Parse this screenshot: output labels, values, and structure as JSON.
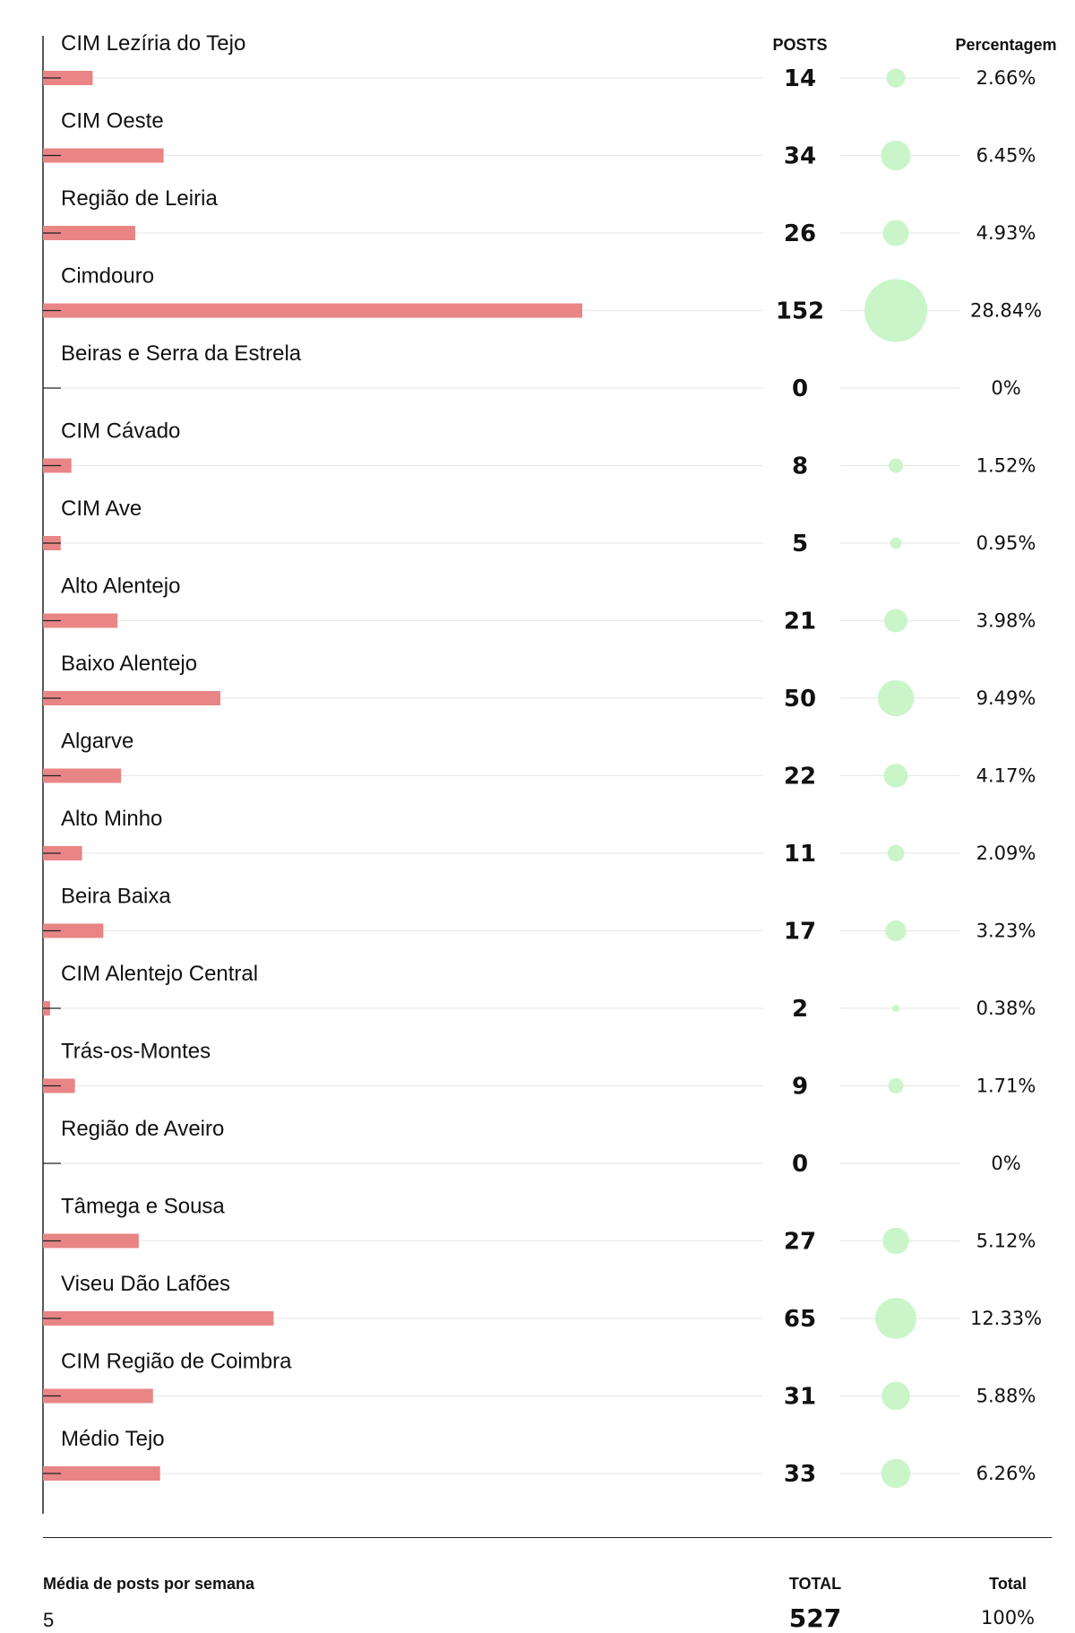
{
  "chart_data": {
    "type": "bar",
    "headers": {
      "posts": "POSTS",
      "percent": "Percentagem"
    },
    "categories": [
      "CIM Lezíria do Tejo",
      "CIM Oeste",
      "Região de Leiria",
      "Cimdouro",
      "Beiras e Serra da Estrela",
      "CIM Cávado",
      "CIM Ave",
      "Alto Alentejo",
      "Baixo Alentejo",
      "Algarve",
      "Alto Minho",
      "Beira Baixa",
      "CIM Alentejo Central",
      "Trás-os-Montes",
      "Região de Aveiro",
      "Tâmega e Sousa",
      "Viseu Dão Lafões",
      "CIM Região de Coimbra",
      "Médio Tejo"
    ],
    "values": [
      14,
      34,
      26,
      152,
      0,
      8,
      5,
      21,
      50,
      22,
      11,
      17,
      2,
      9,
      0,
      27,
      65,
      31,
      33
    ],
    "percent_labels": [
      "2.66%",
      "6.45%",
      "4.93%",
      "28.84%",
      "0%",
      "1.52%",
      "0.95%",
      "3.98%",
      "9.49%",
      "4.17%",
      "2.09%",
      "3.23%",
      "0.38%",
      "1.71%",
      "0%",
      "5.12%",
      "12.33%",
      "5.88%",
      "6.26%"
    ],
    "percents": [
      2.66,
      6.45,
      4.93,
      28.84,
      0,
      1.52,
      0.95,
      3.98,
      9.49,
      4.17,
      2.09,
      3.23,
      0.38,
      1.71,
      0,
      5.12,
      12.33,
      5.88,
      6.26
    ],
    "colors": {
      "bar": "#e98585",
      "bubble": "#c9f5c9",
      "axis": "#222222",
      "gridline": "#e6e6e6"
    }
  },
  "footer": {
    "avg_label": "Média de posts por semana",
    "avg_value": "5",
    "total_label": "TOTAL",
    "total_value": "527",
    "pct_label": "Total",
    "pct_value": "100%"
  }
}
